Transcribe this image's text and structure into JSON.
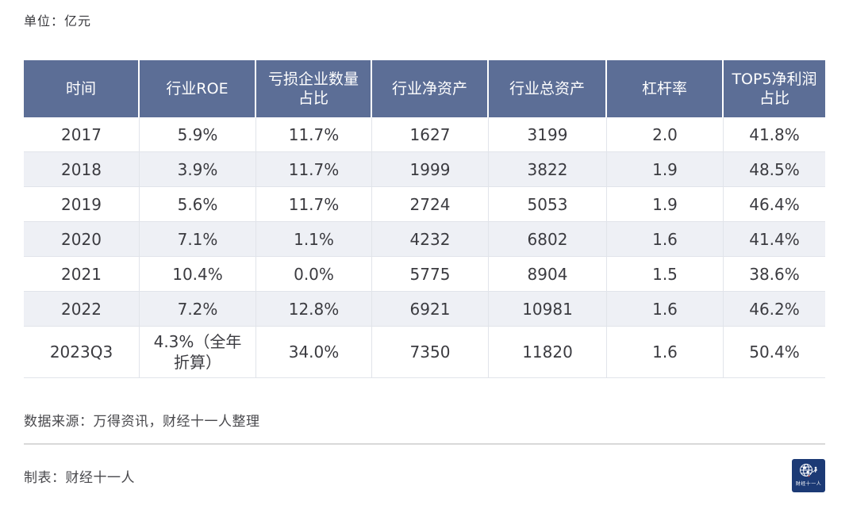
{
  "unit_label": "单位：亿元",
  "chart_data": {
    "type": "table",
    "title": "",
    "unit": "亿元",
    "columns": [
      "时间",
      "行业ROE",
      "亏损企业数量占比",
      "行业净资产",
      "行业总资产",
      "杠杆率",
      "TOP5净利润占比"
    ],
    "rows": [
      [
        "2017",
        "5.9%",
        "11.7%",
        "1627",
        "3199",
        "2.0",
        "41.8%"
      ],
      [
        "2018",
        "3.9%",
        "11.7%",
        "1999",
        "3822",
        "1.9",
        "48.5%"
      ],
      [
        "2019",
        "5.6%",
        "11.7%",
        "2724",
        "5053",
        "1.9",
        "46.4%"
      ],
      [
        "2020",
        "7.1%",
        "1.1%",
        "4232",
        "6802",
        "1.6",
        "41.4%"
      ],
      [
        "2021",
        "10.4%",
        "0.0%",
        "5775",
        "8904",
        "1.5",
        "38.6%"
      ],
      [
        "2022",
        "7.2%",
        "12.8%",
        "6921",
        "10981",
        "1.6",
        "46.2%"
      ],
      [
        "2023Q3",
        "4.3%（全年折算）",
        "34.0%",
        "7350",
        "11820",
        "1.6",
        "50.4%"
      ]
    ]
  },
  "footer": {
    "source": "数据来源：万得资讯，财经十一人整理",
    "credit": "制表：财经十一人",
    "logo_text": "财经十一人"
  },
  "colors": {
    "header_bg": "#5c6e96",
    "header_text": "#ffffff",
    "alt_row_bg": "#eef0f5",
    "body_text": "#3b3b40",
    "cell_border": "#e1e4ea",
    "divider": "#d9d9d9",
    "logo_bg": "#1c3a75"
  }
}
